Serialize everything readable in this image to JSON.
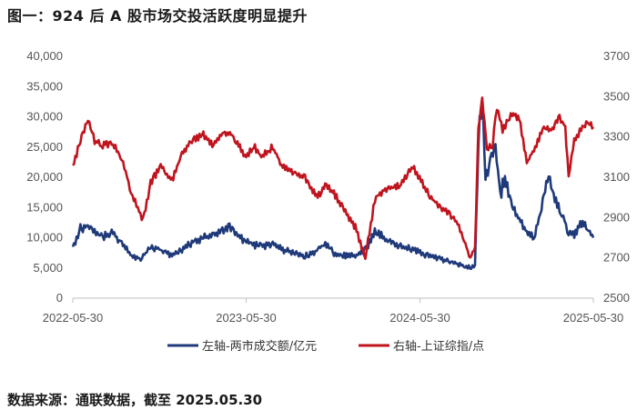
{
  "figure": {
    "title": "图一：924 后 A 股市场交投活跃度明显提升",
    "source": "数据来源：通联数据，截至 2025.05.30"
  },
  "chart_data": {
    "type": "line",
    "x_tick_labels": [
      "2022-05-30",
      "2023-05-30",
      "2024-05-30",
      "2025-05-30"
    ],
    "x_range": [
      "2022-05-30",
      "2025-05-30"
    ],
    "left_axis": {
      "ylim": [
        0,
        40000
      ],
      "ticks": [
        0,
        5000,
        10000,
        15000,
        20000,
        25000,
        30000,
        35000,
        40000
      ],
      "tick_labels": [
        "0",
        "5,000",
        "10,000",
        "15,000",
        "20,000",
        "25,000",
        "30,000",
        "35,000",
        "40,000"
      ]
    },
    "right_axis": {
      "ylim": [
        2500,
        3700
      ],
      "ticks": [
        2500,
        2700,
        2900,
        3100,
        3300,
        3500,
        3700
      ],
      "tick_labels": [
        "2500",
        "2700",
        "2900",
        "3100",
        "3300",
        "3500",
        "3700"
      ]
    },
    "grid": false,
    "legend_position": "bottom",
    "series": [
      {
        "name": "左轴-两市成交额/亿元",
        "axis": "left",
        "color": "#1f3a7a",
        "points": [
          [
            "2022-05-30",
            8500
          ],
          [
            "2022-06-15",
            11500
          ],
          [
            "2022-07-01",
            12000
          ],
          [
            "2022-07-15",
            11000
          ],
          [
            "2022-08-01",
            10000
          ],
          [
            "2022-08-20",
            11000
          ],
          [
            "2022-09-10",
            9000
          ],
          [
            "2022-10-01",
            7000
          ],
          [
            "2022-10-20",
            6500
          ],
          [
            "2022-11-10",
            8500
          ],
          [
            "2022-12-01",
            8000
          ],
          [
            "2022-12-25",
            7000
          ],
          [
            "2023-01-15",
            8000
          ],
          [
            "2023-02-10",
            9500
          ],
          [
            "2023-03-01",
            10000
          ],
          [
            "2023-03-20",
            10500
          ],
          [
            "2023-04-10",
            11000
          ],
          [
            "2023-04-25",
            12000
          ],
          [
            "2023-05-15",
            10000
          ],
          [
            "2023-06-10",
            9000
          ],
          [
            "2023-07-01",
            8500
          ],
          [
            "2023-07-25",
            9000
          ],
          [
            "2023-08-15",
            8000
          ],
          [
            "2023-09-10",
            7500
          ],
          [
            "2023-10-01",
            7000
          ],
          [
            "2023-10-20",
            7500
          ],
          [
            "2023-11-10",
            9000
          ],
          [
            "2023-12-01",
            7500
          ],
          [
            "2023-12-25",
            7000
          ],
          [
            "2024-01-15",
            7000
          ],
          [
            "2024-02-05",
            8000
          ],
          [
            "2024-02-25",
            11000
          ],
          [
            "2024-03-15",
            10000
          ],
          [
            "2024-04-05",
            9000
          ],
          [
            "2024-04-25",
            8500
          ],
          [
            "2024-05-20",
            8000
          ],
          [
            "2024-06-15",
            7000
          ],
          [
            "2024-07-10",
            6500
          ],
          [
            "2024-08-01",
            6000
          ],
          [
            "2024-08-25",
            5500
          ],
          [
            "2024-09-15",
            5000
          ],
          [
            "2024-09-23",
            5500
          ],
          [
            "2024-09-30",
            26000
          ],
          [
            "2024-10-08",
            34500
          ],
          [
            "2024-10-15",
            20000
          ],
          [
            "2024-10-25",
            22000
          ],
          [
            "2024-11-05",
            25000
          ],
          [
            "2024-11-15",
            17000
          ],
          [
            "2024-11-25",
            20000
          ],
          [
            "2024-12-10",
            15000
          ],
          [
            "2024-12-25",
            13000
          ],
          [
            "2025-01-10",
            11000
          ],
          [
            "2025-01-25",
            10000
          ],
          [
            "2025-02-10",
            15000
          ],
          [
            "2025-02-25",
            21000
          ],
          [
            "2025-03-10",
            16000
          ],
          [
            "2025-03-25",
            14000
          ],
          [
            "2025-04-08",
            11000
          ],
          [
            "2025-04-20",
            10500
          ],
          [
            "2025-05-05",
            12500
          ],
          [
            "2025-05-20",
            11000
          ],
          [
            "2025-05-30",
            10000
          ]
        ]
      },
      {
        "name": "右轴-上证综指/点",
        "axis": "right",
        "color": "#c0141e",
        "points": [
          [
            "2022-05-30",
            3150
          ],
          [
            "2022-06-15",
            3280
          ],
          [
            "2022-07-01",
            3390
          ],
          [
            "2022-07-15",
            3280
          ],
          [
            "2022-08-01",
            3260
          ],
          [
            "2022-08-20",
            3270
          ],
          [
            "2022-09-10",
            3200
          ],
          [
            "2022-09-30",
            3025
          ],
          [
            "2022-10-25",
            2890
          ],
          [
            "2022-11-10",
            3070
          ],
          [
            "2022-12-01",
            3160
          ],
          [
            "2022-12-25",
            3080
          ],
          [
            "2023-01-15",
            3220
          ],
          [
            "2023-02-10",
            3290
          ],
          [
            "2023-03-01",
            3310
          ],
          [
            "2023-03-20",
            3260
          ],
          [
            "2023-04-10",
            3320
          ],
          [
            "2023-05-01",
            3310
          ],
          [
            "2023-05-30",
            3200
          ],
          [
            "2023-06-15",
            3260
          ],
          [
            "2023-07-01",
            3200
          ],
          [
            "2023-07-25",
            3250
          ],
          [
            "2023-08-15",
            3150
          ],
          [
            "2023-09-10",
            3120
          ],
          [
            "2023-10-01",
            3100
          ],
          [
            "2023-10-25",
            3000
          ],
          [
            "2023-11-15",
            3060
          ],
          [
            "2023-12-01",
            3020
          ],
          [
            "2023-12-25",
            2930
          ],
          [
            "2024-01-15",
            2850
          ],
          [
            "2024-02-05",
            2700
          ],
          [
            "2024-02-25",
            2990
          ],
          [
            "2024-03-15",
            3040
          ],
          [
            "2024-04-05",
            3050
          ],
          [
            "2024-04-20",
            3070
          ],
          [
            "2024-05-15",
            3150
          ],
          [
            "2024-06-01",
            3090
          ],
          [
            "2024-06-20",
            3000
          ],
          [
            "2024-07-10",
            2960
          ],
          [
            "2024-08-01",
            2910
          ],
          [
            "2024-08-20",
            2860
          ],
          [
            "2024-09-13",
            2700
          ],
          [
            "2024-09-23",
            2750
          ],
          [
            "2024-09-30",
            3340
          ],
          [
            "2024-10-08",
            3490
          ],
          [
            "2024-10-18",
            3250
          ],
          [
            "2024-10-30",
            3260
          ],
          [
            "2024-11-08",
            3450
          ],
          [
            "2024-11-20",
            3330
          ],
          [
            "2024-12-10",
            3420
          ],
          [
            "2024-12-25",
            3390
          ],
          [
            "2025-01-10",
            3170
          ],
          [
            "2025-01-25",
            3240
          ],
          [
            "2025-02-15",
            3350
          ],
          [
            "2025-03-05",
            3330
          ],
          [
            "2025-03-20",
            3400
          ],
          [
            "2025-04-01",
            3350
          ],
          [
            "2025-04-08",
            3100
          ],
          [
            "2025-04-20",
            3290
          ],
          [
            "2025-05-10",
            3350
          ],
          [
            "2025-05-20",
            3380
          ],
          [
            "2025-05-30",
            3350
          ]
        ]
      }
    ]
  }
}
